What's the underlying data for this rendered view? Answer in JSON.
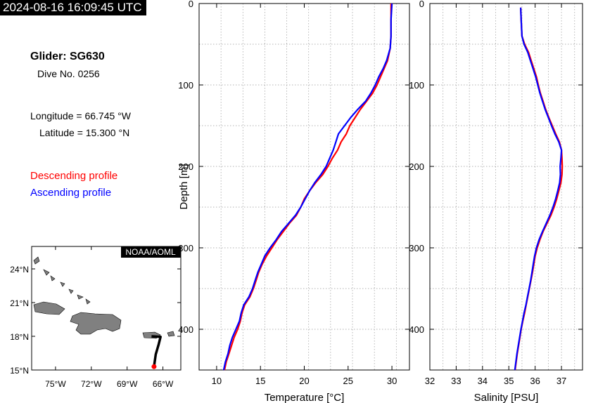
{
  "header": {
    "timestamp": "2024-08-16 16:09:45 UTC",
    "glider": "Glider: SG630",
    "dive": "Dive No. 0256",
    "longitude": "Longitude = 66.745 °W",
    "latitude": "Latitude = 15.300 °N"
  },
  "legend": {
    "descending": "Descending profile",
    "ascending": "Ascending profile",
    "descending_color": "#ff0000",
    "ascending_color": "#0000ff"
  },
  "map": {
    "credit": "NOAA/AOML",
    "lat_ticks": [
      "24°N",
      "21°N",
      "18°N",
      "15°N"
    ],
    "lon_ticks": [
      "75°W",
      "72°W",
      "69°W",
      "66°W"
    ],
    "lat_range": [
      15,
      26
    ],
    "lon_range": [
      -77,
      -64.5
    ],
    "track_color": "#000000",
    "land_color": "#808080",
    "track": [
      [
        -66.95,
        18.0
      ],
      [
        -66.2,
        17.95
      ],
      [
        -66.35,
        17.3
      ],
      [
        -66.6,
        16.4
      ],
      [
        -66.745,
        15.3
      ]
    ],
    "current_position": [
      -66.745,
      15.3
    ],
    "marker_color": "#ff0000"
  },
  "chart_data": [
    {
      "type": "line",
      "xlabel": "Temperature [°C]",
      "ylabel": "Depth [m]",
      "xlim": [
        8,
        32
      ],
      "ylim": [
        450,
        0
      ],
      "x_ticks": [
        10,
        15,
        20,
        25,
        30
      ],
      "y_ticks": [
        0,
        100,
        200,
        300,
        400
      ],
      "grid": true,
      "series": [
        {
          "name": "Descending profile",
          "color": "#ff0000",
          "depth": [
            0,
            20,
            40,
            55,
            70,
            80,
            90,
            100,
            110,
            120,
            130,
            140,
            150,
            160,
            170,
            180,
            190,
            200,
            210,
            220,
            230,
            240,
            250,
            260,
            270,
            280,
            290,
            300,
            310,
            320,
            330,
            340,
            350,
            360,
            370,
            380,
            390,
            400,
            410,
            420,
            430,
            440,
            450
          ],
          "values": [
            29.9,
            29.9,
            29.9,
            29.8,
            29.5,
            29.1,
            28.7,
            28.3,
            27.8,
            27.1,
            26.4,
            25.8,
            25.2,
            24.8,
            24.2,
            23.8,
            23.2,
            22.7,
            22.1,
            21.3,
            20.6,
            20.0,
            19.6,
            19.1,
            18.3,
            17.6,
            16.9,
            16.3,
            15.7,
            15.2,
            14.8,
            14.5,
            14.2,
            13.8,
            13.2,
            12.9,
            12.7,
            12.4,
            12.0,
            11.7,
            11.4,
            11.1,
            10.9
          ]
        },
        {
          "name": "Ascending profile",
          "color": "#0000ff",
          "depth": [
            0,
            20,
            40,
            55,
            70,
            80,
            90,
            100,
            110,
            120,
            130,
            140,
            150,
            160,
            170,
            180,
            190,
            200,
            210,
            220,
            230,
            240,
            250,
            260,
            270,
            280,
            290,
            300,
            310,
            320,
            330,
            340,
            350,
            360,
            370,
            380,
            390,
            400,
            410,
            420,
            430,
            440,
            450
          ],
          "values": [
            30.0,
            29.9,
            29.9,
            29.8,
            29.4,
            29.0,
            28.5,
            28.1,
            27.6,
            27.0,
            26.1,
            25.3,
            24.6,
            23.9,
            23.6,
            23.3,
            22.9,
            22.5,
            21.9,
            21.2,
            20.6,
            20.1,
            19.6,
            19.0,
            18.2,
            17.4,
            16.8,
            16.1,
            15.5,
            15.1,
            14.7,
            14.4,
            14.1,
            13.7,
            13.1,
            12.8,
            12.6,
            12.2,
            11.8,
            11.5,
            11.3,
            11.0,
            10.8
          ]
        }
      ]
    },
    {
      "type": "line",
      "xlabel": "Salinity [PSU]",
      "ylabel": "",
      "xlim": [
        32,
        37.8
      ],
      "ylim": [
        450,
        0
      ],
      "x_ticks": [
        32,
        33,
        34,
        35,
        36,
        37
      ],
      "y_ticks": [
        0,
        100,
        200,
        300,
        400
      ],
      "grid": true,
      "series": [
        {
          "name": "Descending profile",
          "color": "#ff0000",
          "depth": [
            5,
            20,
            40,
            50,
            60,
            70,
            80,
            90,
            100,
            110,
            120,
            130,
            140,
            150,
            160,
            170,
            180,
            190,
            200,
            210,
            220,
            230,
            240,
            250,
            260,
            270,
            280,
            290,
            300,
            310,
            320,
            330,
            340,
            350,
            360,
            370,
            380,
            390,
            400,
            410,
            420,
            430,
            440,
            450
          ],
          "values": [
            35.45,
            35.47,
            35.5,
            35.6,
            35.75,
            35.85,
            35.95,
            36.05,
            36.12,
            36.2,
            36.3,
            36.4,
            36.52,
            36.65,
            36.78,
            36.92,
            37.0,
            37.02,
            37.03,
            37.02,
            36.98,
            36.9,
            36.82,
            36.72,
            36.6,
            36.45,
            36.3,
            36.18,
            36.08,
            36.0,
            35.95,
            35.9,
            35.84,
            35.78,
            35.72,
            35.66,
            35.6,
            35.53,
            35.47,
            35.42,
            35.37,
            35.32,
            35.28,
            35.24
          ]
        },
        {
          "name": "Ascending profile",
          "color": "#0000ff",
          "depth": [
            5,
            20,
            40,
            50,
            60,
            70,
            80,
            90,
            100,
            110,
            120,
            130,
            140,
            150,
            160,
            170,
            180,
            190,
            200,
            210,
            220,
            230,
            240,
            250,
            260,
            270,
            280,
            290,
            300,
            310,
            320,
            330,
            340,
            350,
            360,
            370,
            380,
            390,
            400,
            410,
            420,
            430,
            440,
            450
          ],
          "values": [
            35.45,
            35.47,
            35.5,
            35.58,
            35.72,
            35.82,
            35.92,
            36.02,
            36.1,
            36.18,
            36.28,
            36.38,
            36.5,
            36.62,
            36.75,
            36.9,
            37.0,
            36.98,
            36.95,
            36.96,
            36.93,
            36.86,
            36.78,
            36.68,
            36.56,
            36.42,
            36.28,
            36.15,
            36.05,
            35.98,
            35.93,
            35.88,
            35.83,
            35.77,
            35.71,
            35.65,
            35.58,
            35.52,
            35.46,
            35.41,
            35.36,
            35.31,
            35.27,
            35.23
          ]
        }
      ]
    }
  ]
}
